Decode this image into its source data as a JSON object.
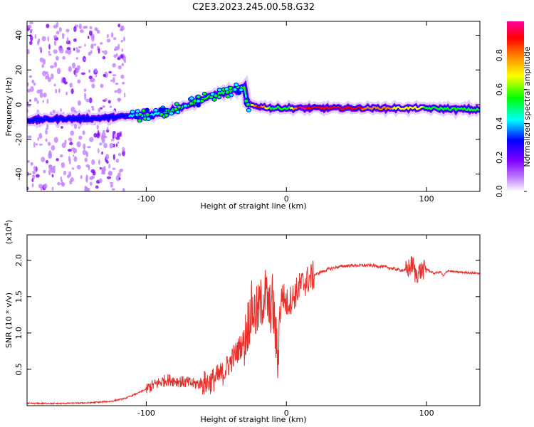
{
  "title": "C2E3.2023.245.00.58.G32",
  "chart_data": [
    {
      "type": "heatmap",
      "name": "spectrogram",
      "xlabel": "Height of straight line (km)",
      "ylabel": "Frequency (Hz)",
      "xlim": [
        -185,
        138
      ],
      "ylim": [
        -50,
        48
      ],
      "x_ticks": [
        -100,
        0,
        100
      ],
      "y_ticks": [
        -40,
        -20,
        0,
        20,
        40
      ],
      "colorbar": {
        "label": "Normalized spectral amplitude",
        "range": [
          0,
          1
        ],
        "ticks": [
          "0.0",
          "0.2",
          "0.4",
          "0.6",
          "0.8"
        ],
        "colors": [
          "#ffffff",
          "#c080ff",
          "#8000ff",
          "#0000ff",
          "#00ffff",
          "#00ff00",
          "#ffff00",
          "#ff8000",
          "#ff0000",
          "#ff00a0"
        ]
      },
      "ridge": {
        "x": [
          -185,
          -160,
          -140,
          -120,
          -100,
          -90,
          -80,
          -70,
          -60,
          -50,
          -40,
          -30,
          -28,
          -20,
          -10,
          0,
          10,
          40,
          80,
          100,
          120,
          138
        ],
        "y": [
          -9,
          -8,
          -8,
          -7,
          -6,
          -5,
          -3,
          0,
          3,
          6,
          8,
          10,
          0,
          -1,
          -2,
          -2,
          -2,
          -2,
          -2,
          -2,
          -2.5,
          -3
        ],
        "amplitude": [
          0.35,
          0.3,
          0.3,
          0.35,
          0.45,
          0.5,
          0.5,
          0.5,
          0.55,
          0.5,
          0.55,
          0.5,
          0.45,
          0.9,
          0.5,
          0.5,
          0.95,
          0.9,
          0.7,
          0.6,
          0.55,
          0.55
        ]
      }
    },
    {
      "type": "line",
      "name": "snr",
      "xlabel": "Height of straight line (km)",
      "ylabel": "SNR (10 * v/v)",
      "y_multiplier": "(x10",
      "y_multiplier_exp": "4",
      "y_multiplier_close": ")",
      "xlim": [
        -185,
        138
      ],
      "ylim": [
        0,
        2.35
      ],
      "x_ticks": [
        -100,
        0,
        100
      ],
      "y_ticks": [
        0.5,
        1.0,
        1.5,
        2.0
      ],
      "y_tick_labels": [
        "0.5",
        "1.0",
        "1.5",
        "2.0"
      ],
      "color": "#e8302b",
      "series": {
        "x": [
          -185,
          -160,
          -140,
          -125,
          -115,
          -105,
          -95,
          -85,
          -75,
          -65,
          -55,
          -45,
          -40,
          -35,
          -30,
          -27,
          -25,
          -22,
          -20,
          -15,
          -12,
          -10,
          -6,
          -5,
          -3,
          0,
          5,
          10,
          20,
          30,
          40,
          50,
          60,
          70,
          80,
          85,
          88,
          90,
          92,
          95,
          100,
          105,
          110,
          112,
          115,
          120,
          130,
          138
        ],
        "y": [
          0.03,
          0.03,
          0.04,
          0.06,
          0.1,
          0.18,
          0.28,
          0.36,
          0.33,
          0.3,
          0.32,
          0.45,
          0.6,
          0.75,
          0.9,
          1.15,
          1.35,
          1.25,
          1.3,
          1.55,
          1.3,
          1.45,
          0.6,
          1.2,
          1.55,
          1.4,
          1.5,
          1.65,
          1.8,
          1.88,
          1.92,
          1.93,
          1.93,
          1.91,
          1.87,
          1.86,
          1.9,
          1.95,
          1.8,
          1.85,
          1.88,
          1.82,
          1.84,
          1.78,
          1.86,
          1.84,
          1.83,
          1.82
        ]
      }
    }
  ]
}
